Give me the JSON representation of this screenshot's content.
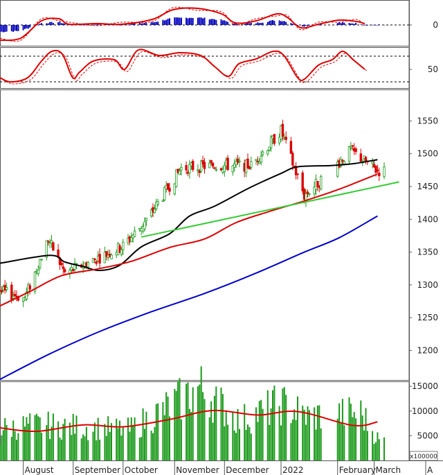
{
  "chart_data": {
    "type": "candlestick",
    "panels": [
      {
        "id": "macd",
        "y_ticks": [
          "0"
        ],
        "zero_line": true,
        "series": [
          {
            "role": "macd",
            "color": "#dd0000"
          },
          {
            "role": "signal",
            "color": "#dd0000",
            "style": "dashed"
          },
          {
            "role": "histogram",
            "color": "#0000bb"
          }
        ]
      },
      {
        "id": "stochastic",
        "y_ticks": [
          "50"
        ],
        "levels": [
          80,
          20
        ],
        "series": [
          {
            "role": "k",
            "color": "#dd0000"
          },
          {
            "role": "d",
            "color": "#dd0000",
            "style": "dashed"
          }
        ]
      },
      {
        "id": "price",
        "y_ticks": [
          "1550",
          "1500",
          "1450",
          "1400",
          "1350",
          "1300",
          "1250",
          "1200"
        ],
        "ylim": [
          1155,
          1598
        ],
        "up_color": "#1a9a1a",
        "down_color": "#dd0000",
        "candles_sample": [
          {
            "date": "2021-08-03",
            "open": 1300,
            "close": 1280
          },
          {
            "date": "2021-08-17",
            "open": 1362,
            "close": 1370
          },
          {
            "date": "2021-08-27",
            "open": 1335,
            "close": 1318
          },
          {
            "date": "2021-09-30",
            "open": 1350,
            "close": 1357
          },
          {
            "date": "2021-10-15",
            "open": 1393,
            "close": 1398
          },
          {
            "date": "2021-11-05",
            "open": 1482,
            "close": 1478
          },
          {
            "date": "2021-11-25",
            "open": 1500,
            "close": 1482
          },
          {
            "date": "2021-12-17",
            "open": 1475,
            "close": 1482
          },
          {
            "date": "2022-01-04",
            "open": 1528,
            "close": 1535
          },
          {
            "date": "2022-01-18",
            "open": 1460,
            "close": 1436
          },
          {
            "date": "2022-02-15",
            "open": 1506,
            "close": 1505
          },
          {
            "date": "2022-03-03",
            "open": 1490,
            "close": 1474
          }
        ],
        "moving_averages": [
          {
            "color": "#000000",
            "points": [
              [
                "2021-07-19",
                1333
              ],
              [
                "2021-08-18",
                1345
              ],
              [
                "2021-08-27",
                1335
              ],
              [
                "2021-09-07",
                1328
              ],
              [
                "2021-09-17",
                1322
              ],
              [
                "2021-09-29",
                1330
              ],
              [
                "2021-10-12",
                1358
              ],
              [
                "2021-10-29",
                1378
              ],
              [
                "2021-11-10",
                1405
              ],
              [
                "2021-11-25",
                1420
              ],
              [
                "2021-12-16",
                1448
              ],
              [
                "2022-01-04",
                1470
              ],
              [
                "2022-01-14",
                1480
              ],
              [
                "2022-02-03",
                1482
              ],
              [
                "2022-02-17",
                1485
              ],
              [
                "2022-03-03",
                1491
              ]
            ]
          },
          {
            "color": "#dd0000",
            "points": [
              [
                "2021-07-19",
                1268
              ],
              [
                "2021-08-06",
                1290
              ],
              [
                "2021-08-25",
                1314
              ],
              [
                "2021-09-15",
                1324
              ],
              [
                "2021-10-06",
                1336
              ],
              [
                "2021-10-29",
                1357
              ],
              [
                "2021-11-19",
                1370
              ],
              [
                "2021-12-08",
                1395
              ],
              [
                "2021-12-28",
                1412
              ],
              [
                "2022-01-18",
                1428
              ],
              [
                "2022-02-08",
                1446
              ],
              [
                "2022-03-03",
                1469
              ]
            ]
          },
          {
            "color": "#0000cc",
            "points": [
              [
                "2021-07-19",
                1156
              ],
              [
                "2021-08-18",
                1195
              ],
              [
                "2021-09-17",
                1229
              ],
              [
                "2021-10-18",
                1259
              ],
              [
                "2021-11-19",
                1287
              ],
              [
                "2021-12-20",
                1318
              ],
              [
                "2022-01-18",
                1350
              ],
              [
                "2022-02-08",
                1372
              ],
              [
                "2022-03-03",
                1405
              ]
            ]
          }
        ],
        "trendline": {
          "color": "#33cc33",
          "points": [
            [
              "2021-10-12",
              1373
            ],
            [
              "2022-03-16",
              1457
            ]
          ]
        }
      },
      {
        "id": "volume",
        "y_ticks": [
          "15000",
          "10000",
          "5000"
        ],
        "multiplier_label": "x100000",
        "bar_color": "#1a9a1a",
        "ma_color": "#dd0000",
        "bars_sample": [
          [
            "2021-07-20",
            6500
          ],
          [
            "2021-08-10",
            7200
          ],
          [
            "2021-09-06",
            6800
          ],
          [
            "2021-10-05",
            6200
          ],
          [
            "2021-11-08",
            13000
          ],
          [
            "2021-11-16",
            14800
          ],
          [
            "2021-12-10",
            8000
          ],
          [
            "2022-01-04",
            11500
          ],
          [
            "2022-01-20",
            9000
          ],
          [
            "2022-02-21",
            9600
          ],
          [
            "2022-03-04",
            4000
          ]
        ],
        "ma_points": [
          [
            "2021-07-19",
            6600
          ],
          [
            "2021-08-10",
            5900
          ],
          [
            "2021-09-07",
            7200
          ],
          [
            "2021-10-01",
            6800
          ],
          [
            "2021-10-29",
            8300
          ],
          [
            "2021-11-24",
            10100
          ],
          [
            "2021-12-21",
            9200
          ],
          [
            "2022-01-14",
            9900
          ],
          [
            "2022-02-16",
            7100
          ],
          [
            "2022-03-03",
            7800
          ]
        ]
      }
    ],
    "x_ticks": [
      "August",
      "September",
      "October",
      "November",
      "December",
      "2022",
      "February",
      "March",
      "A"
    ]
  }
}
